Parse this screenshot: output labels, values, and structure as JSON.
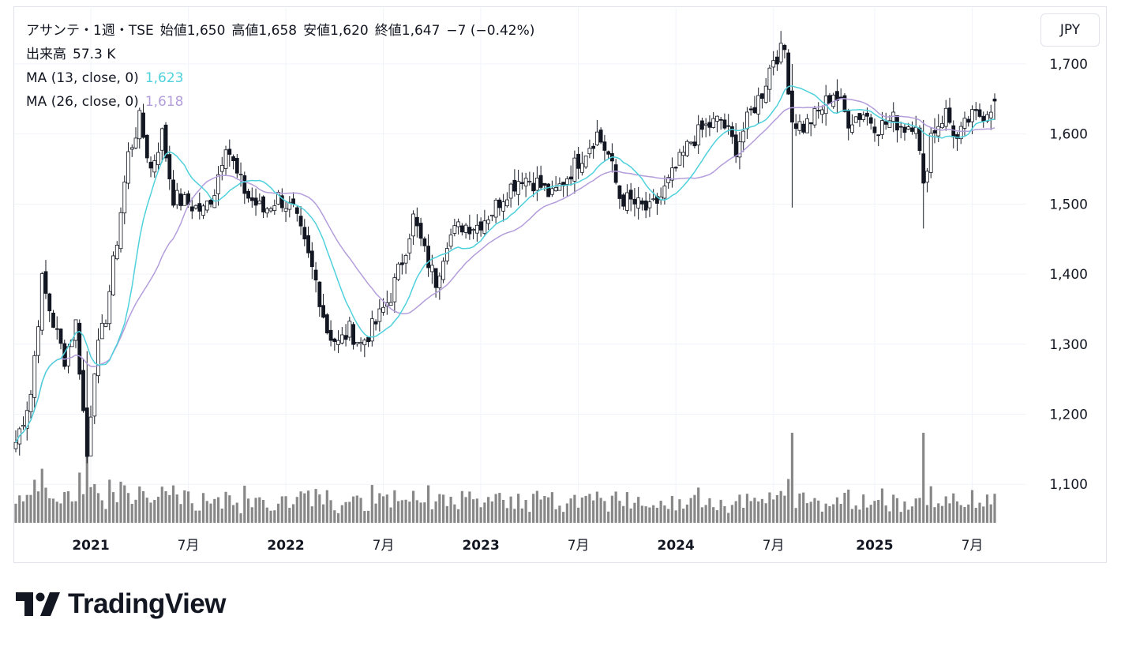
{
  "header": {
    "symbol_line": [
      "アサンテ・1週・TSE",
      "始値1,650",
      "高値1,658",
      "安値1,620",
      "終値1,647",
      "−7 (−0.42%)"
    ],
    "volume_label": "出来高",
    "volume_value": "57.3 K",
    "ma13_label": "MA (13, close, 0)",
    "ma13_value": "1,623",
    "ma26_label": "MA (26, close, 0)",
    "ma26_value": "1,618"
  },
  "currency_button": "JPY",
  "logo_text": "TradingView",
  "colors": {
    "up": "#ffffff",
    "down": "#131722",
    "ma13": "#4fd1dc",
    "ma26": "#b39ddb",
    "volume": "#888888",
    "grid": "#f0f3fa"
  },
  "chart_data": {
    "type": "candlestick",
    "interval": "1W",
    "x_axis_labels": [
      "2021",
      "7月",
      "2022",
      "7月",
      "2023",
      "7月",
      "2024",
      "7月",
      "2025",
      "7月"
    ],
    "y_axis": {
      "ticks": [
        1100,
        1200,
        1300,
        1400,
        1500,
        1600,
        1700
      ],
      "ylim": [
        1045,
        1780
      ]
    },
    "volume_unit": "K",
    "series": [
      {
        "name": "MA (13, close, 0)",
        "color": "#4fd1dc"
      },
      {
        "name": "MA (26, close, 0)",
        "color": "#b39ddb"
      }
    ],
    "waypoints": [
      [
        "2020-08-17",
        1160
      ],
      [
        "2020-09-14",
        1230
      ],
      [
        "2020-10-05",
        1390
      ],
      [
        "2020-10-26",
        1330
      ],
      [
        "2020-11-16",
        1280
      ],
      [
        "2020-12-07",
        1330
      ],
      [
        "2020-12-28",
        1140
      ],
      [
        "2021-01-11",
        1270
      ],
      [
        "2021-02-01",
        1340
      ],
      [
        "2021-02-22",
        1450
      ],
      [
        "2021-03-15",
        1570
      ],
      [
        "2021-04-05",
        1620
      ],
      [
        "2021-04-26",
        1550
      ],
      [
        "2021-05-17",
        1600
      ],
      [
        "2021-06-07",
        1510
      ],
      [
        "2021-07-05",
        1500
      ],
      [
        "2021-08-02",
        1490
      ],
      [
        "2021-08-23",
        1520
      ],
      [
        "2021-09-13",
        1590
      ],
      [
        "2021-10-04",
        1540
      ],
      [
        "2021-10-25",
        1510
      ],
      [
        "2021-11-22",
        1490
      ],
      [
        "2021-12-20",
        1510
      ],
      [
        "2022-01-17",
        1490
      ],
      [
        "2022-02-07",
        1440
      ],
      [
        "2022-02-28",
        1390
      ],
      [
        "2022-03-21",
        1320
      ],
      [
        "2022-04-11",
        1300
      ],
      [
        "2022-05-02",
        1320
      ],
      [
        "2022-05-23",
        1300
      ],
      [
        "2022-06-20",
        1330
      ],
      [
        "2022-07-18",
        1370
      ],
      [
        "2022-08-08",
        1420
      ],
      [
        "2022-08-29",
        1480
      ],
      [
        "2022-09-19",
        1430
      ],
      [
        "2022-10-10",
        1390
      ],
      [
        "2022-10-31",
        1450
      ],
      [
        "2022-11-28",
        1470
      ],
      [
        "2022-12-26",
        1470
      ],
      [
        "2023-01-23",
        1490
      ],
      [
        "2023-02-20",
        1520
      ],
      [
        "2023-03-20",
        1540
      ],
      [
        "2023-04-17",
        1530
      ],
      [
        "2023-05-15",
        1510
      ],
      [
        "2023-06-12",
        1540
      ],
      [
        "2023-07-10",
        1570
      ],
      [
        "2023-08-07",
        1600
      ],
      [
        "2023-08-28",
        1570
      ],
      [
        "2023-09-18",
        1510
      ],
      [
        "2023-10-16",
        1500
      ],
      [
        "2023-11-13",
        1490
      ],
      [
        "2023-12-04",
        1510
      ],
      [
        "2024-01-01",
        1550
      ],
      [
        "2024-01-29",
        1590
      ],
      [
        "2024-02-26",
        1610
      ],
      [
        "2024-03-25",
        1620
      ],
      [
        "2024-04-22",
        1580
      ],
      [
        "2024-05-20",
        1630
      ],
      [
        "2024-06-10",
        1660
      ],
      [
        "2024-07-01",
        1710
      ],
      [
        "2024-07-22",
        1720
      ],
      [
        "2024-08-05",
        1620
      ],
      [
        "2024-08-26",
        1610
      ],
      [
        "2024-09-23",
        1630
      ],
      [
        "2024-10-21",
        1660
      ],
      [
        "2024-11-18",
        1620
      ],
      [
        "2024-12-16",
        1630
      ],
      [
        "2025-01-13",
        1610
      ],
      [
        "2025-02-10",
        1620
      ],
      [
        "2025-03-03",
        1610
      ],
      [
        "2025-03-24",
        1620
      ],
      [
        "2025-04-07",
        1520
      ],
      [
        "2025-04-21",
        1600
      ],
      [
        "2025-05-19",
        1630
      ],
      [
        "2025-06-09",
        1590
      ],
      [
        "2025-06-30",
        1620
      ],
      [
        "2025-07-28",
        1630
      ],
      [
        "2025-08-18",
        1647
      ]
    ],
    "notable_candles": [
      {
        "date": "2020-12-28",
        "high": 1290,
        "low": 1130
      },
      {
        "date": "2024-08-05",
        "high": 1700,
        "low": 1495
      },
      {
        "date": "2025-04-07",
        "high": 1620,
        "low": 1465
      }
    ],
    "last_candle": {
      "open": 1650,
      "high": 1658,
      "low": 1620,
      "close": 1647,
      "change": -7,
      "change_pct": -0.42,
      "volume": "57.3 K"
    }
  }
}
